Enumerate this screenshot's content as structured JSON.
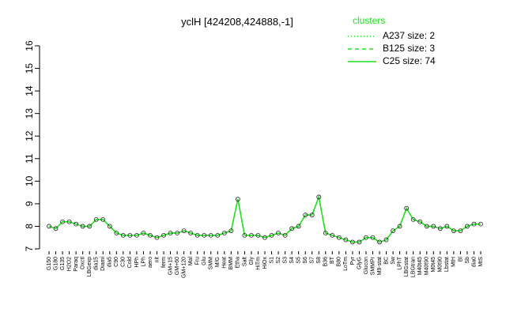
{
  "chart_data": {
    "type": "line",
    "title": "yclH [424208,424888,-1]",
    "legend_title": "clusters",
    "categories": [
      "G150",
      "G180",
      "G135",
      "H2O2",
      "Paraq",
      "Oxctl",
      "LBGexp",
      "dia15",
      "Diami",
      "dia5",
      "C90",
      "C30",
      "Cold",
      "HPh",
      "LPh",
      "aero",
      "nit",
      "ferm",
      "GM+15",
      "GM+60",
      "GM+120",
      "Mal",
      "Fru",
      "Glu",
      "SMM",
      "M/G",
      "Heat",
      "BMM",
      "Etha",
      "Salt",
      "Gly",
      "HiTm",
      "HiOx",
      "S1",
      "S2",
      "S3",
      "S4",
      "S5",
      "S6",
      "S7",
      "S8",
      "B36",
      "BT",
      "B80",
      "LoTm",
      "Pyr",
      "GlyG",
      "Glucon",
      "SMMPr",
      "M9-stat",
      "BC",
      "Sw",
      "LPhT",
      "LBGstat",
      "LBGtran",
      "M40t45",
      "M40t90",
      "M0t45",
      "M0t90",
      "Lbstat",
      "MtH",
      "Bl",
      "Sb",
      "dia0",
      "MtS"
    ],
    "series": [
      {
        "name": "A237 size: 2",
        "color": "#22dd22",
        "linestyle": "dotted",
        "values": [
          8.0,
          7.9,
          8.2,
          8.2,
          8.1,
          8.0,
          8.0,
          8.3,
          8.3,
          8.0,
          7.7,
          7.6,
          7.6,
          7.6,
          7.7,
          7.6,
          7.5,
          7.6,
          7.7,
          7.7,
          7.8,
          7.7,
          7.6,
          7.6,
          7.6,
          7.6,
          7.7,
          7.8,
          9.2,
          7.6,
          7.6,
          7.6,
          7.5,
          7.6,
          7.7,
          7.6,
          7.9,
          8.0,
          8.5,
          8.5,
          9.3,
          7.7,
          7.6,
          7.5,
          7.4,
          7.3,
          7.3,
          7.5,
          7.5,
          7.3,
          7.4,
          7.8,
          8.0,
          8.8,
          8.3,
          8.2,
          8.0,
          8.0,
          7.9,
          8.0,
          7.8,
          7.8,
          8.0,
          8.1,
          8.1
        ]
      },
      {
        "name": "B125 size: 3",
        "color": "#22dd22",
        "linestyle": "dashed",
        "values": [
          8.0,
          7.9,
          8.2,
          8.2,
          8.1,
          8.0,
          8.0,
          8.3,
          8.3,
          8.0,
          7.7,
          7.6,
          7.6,
          7.6,
          7.7,
          7.6,
          7.5,
          7.6,
          7.7,
          7.7,
          7.8,
          7.7,
          7.6,
          7.6,
          7.6,
          7.6,
          7.7,
          7.8,
          9.2,
          7.6,
          7.6,
          7.6,
          7.5,
          7.6,
          7.7,
          7.6,
          7.9,
          8.0,
          8.5,
          8.5,
          9.3,
          7.7,
          7.6,
          7.5,
          7.4,
          7.3,
          7.3,
          7.5,
          7.5,
          7.3,
          7.4,
          7.8,
          8.0,
          8.8,
          8.3,
          8.2,
          8.0,
          8.0,
          7.9,
          8.0,
          7.8,
          7.8,
          8.0,
          8.1,
          8.1
        ]
      },
      {
        "name": "C25 size: 74",
        "color": "#22dd22",
        "linestyle": "solid",
        "values": [
          8.0,
          7.9,
          8.2,
          8.2,
          8.1,
          8.0,
          8.0,
          8.3,
          8.3,
          8.0,
          7.7,
          7.6,
          7.6,
          7.6,
          7.7,
          7.6,
          7.5,
          7.6,
          7.7,
          7.7,
          7.8,
          7.7,
          7.6,
          7.6,
          7.6,
          7.6,
          7.7,
          7.8,
          9.2,
          7.6,
          7.6,
          7.6,
          7.5,
          7.6,
          7.7,
          7.6,
          7.9,
          8.0,
          8.5,
          8.5,
          9.3,
          7.7,
          7.6,
          7.5,
          7.4,
          7.3,
          7.3,
          7.5,
          7.5,
          7.3,
          7.4,
          7.8,
          8.0,
          8.8,
          8.3,
          8.2,
          8.0,
          8.0,
          7.9,
          8.0,
          7.8,
          7.8,
          8.0,
          8.1,
          8.1
        ]
      }
    ],
    "ylim": [
      7,
      16
    ],
    "yticks": [
      7,
      8,
      9,
      10,
      11,
      12,
      13,
      14,
      15,
      16
    ]
  }
}
